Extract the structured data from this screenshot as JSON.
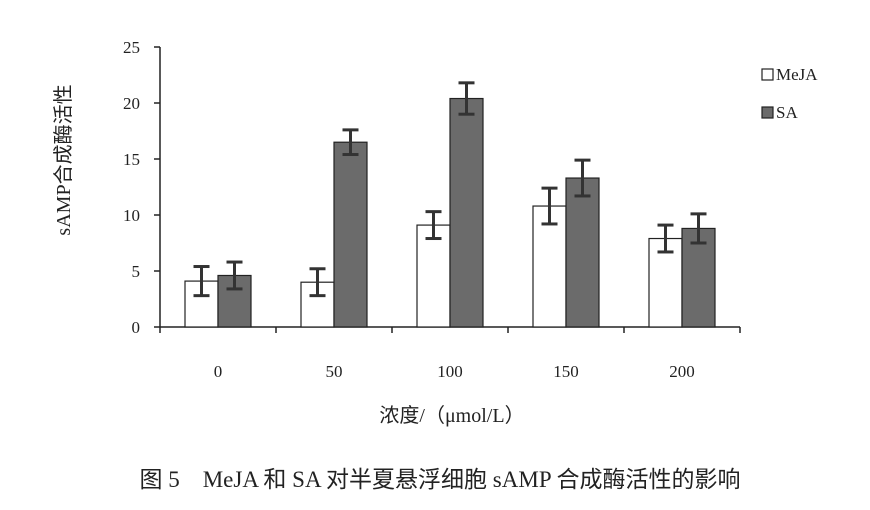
{
  "chart_data": {
    "type": "bar",
    "categories": [
      "0",
      "50",
      "100",
      "150",
      "200"
    ],
    "series": [
      {
        "name": "MeJA",
        "values": [
          4.1,
          4.0,
          9.1,
          10.8,
          7.9
        ],
        "errors": [
          1.3,
          1.2,
          1.2,
          1.6,
          1.2
        ],
        "color": "#ffffff"
      },
      {
        "name": "SA",
        "values": [
          4.6,
          16.5,
          20.4,
          13.3,
          8.8
        ],
        "errors": [
          1.2,
          1.1,
          1.4,
          1.6,
          1.3
        ],
        "color": "#6b6b6b"
      }
    ],
    "ylabel": "sAMP合成酶活性",
    "xlabel": "浓度/（μmol/L）",
    "ylim": [
      0,
      25
    ],
    "yticks": [
      0,
      5,
      10,
      15,
      20,
      25
    ],
    "legend_position": "right",
    "grid": false
  },
  "caption": "图 5　MeJA 和 SA 对半夏悬浮细胞 sAMP 合成酶活性的影响"
}
